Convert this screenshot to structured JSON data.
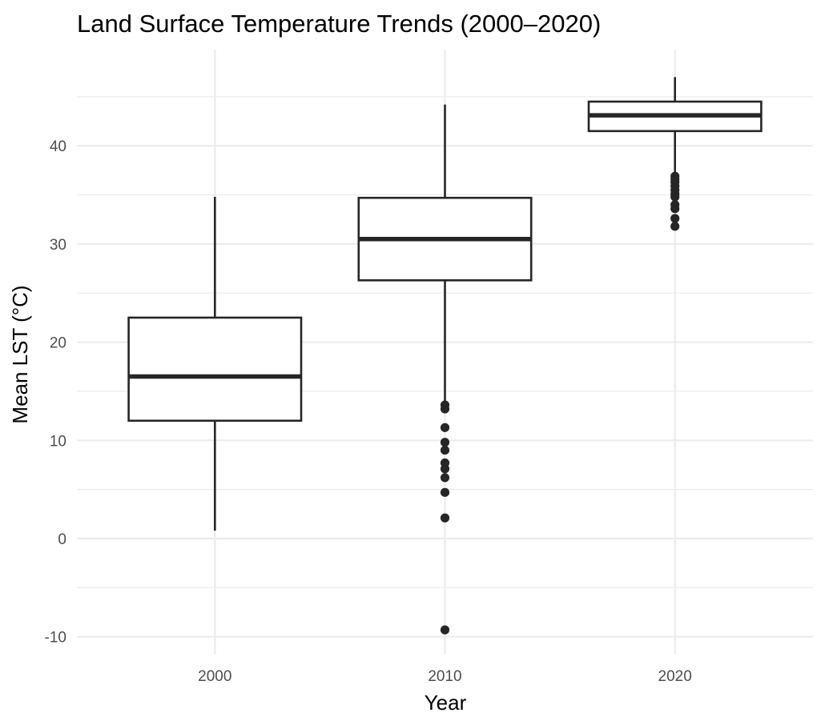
{
  "chart_data": {
    "type": "boxplot",
    "title": "Land Surface Temperature Trends (2000–2020)",
    "xlabel": "Year",
    "ylabel": "Mean LST (°C)",
    "categories": [
      "2000",
      "2010",
      "2020"
    ],
    "ylim": [
      -11.8,
      48.5
    ],
    "yticks": [
      -10,
      0,
      10,
      20,
      30,
      40
    ],
    "ytick_labels": [
      "-10",
      "0",
      "10",
      "20",
      "30",
      "40"
    ],
    "grid": true,
    "boxes": [
      {
        "category": "2000",
        "whisker_low": 0.8,
        "q1": 12.0,
        "median": 16.5,
        "q3": 22.5,
        "whisker_high": 34.8,
        "outliers": []
      },
      {
        "category": "2010",
        "whisker_low": 13.8,
        "q1": 26.3,
        "median": 30.5,
        "q3": 34.7,
        "whisker_high": 44.2,
        "outliers": [
          13.6,
          13.2,
          11.3,
          9.8,
          9.0,
          7.7,
          7.1,
          6.2,
          4.7,
          2.1,
          -9.3
        ]
      },
      {
        "category": "2020",
        "whisker_low": 37.2,
        "q1": 41.5,
        "median": 43.1,
        "q3": 44.5,
        "whisker_high": 47.0,
        "outliers": [
          36.9,
          36.6,
          36.3,
          35.9,
          35.5,
          35.1,
          34.8,
          34.0,
          33.6,
          32.6,
          31.8
        ]
      }
    ],
    "colors": {
      "box_stroke": "#262626",
      "box_fill": "#ffffff",
      "grid": "#ebebeb",
      "tick_text": "#4d4d4d"
    }
  }
}
